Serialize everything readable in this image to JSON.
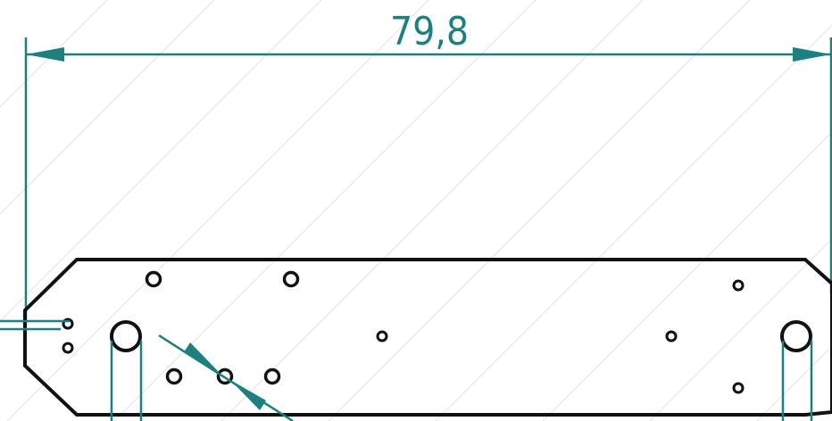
{
  "drawing": {
    "dimension_label": "79,8",
    "colors": {
      "dimension": "#1a8080",
      "outline": "#111111",
      "hatch": "#e4e4e4",
      "background": "#ffffff"
    }
  }
}
